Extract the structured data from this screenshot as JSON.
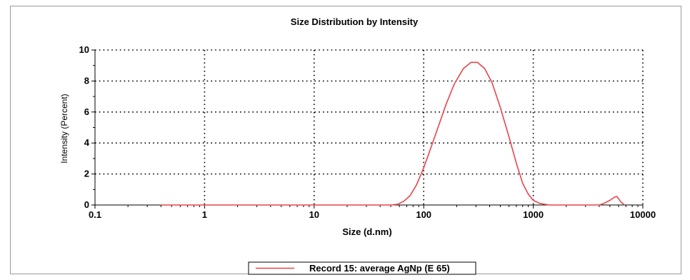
{
  "chart_data": {
    "type": "line",
    "title": "Size Distribution by Intensity",
    "xlabel": "Size (d.nm)",
    "ylabel": "Intensity (Percent)",
    "x_scale": "log",
    "xlim": [
      0.1,
      10000
    ],
    "ylim": [
      0,
      10
    ],
    "x_ticks": [
      0.1,
      1,
      10,
      100,
      1000,
      10000
    ],
    "x_tick_labels": [
      "0.1",
      "1",
      "10",
      "100",
      "1000",
      "10000"
    ],
    "y_ticks": [
      0,
      2,
      4,
      6,
      8,
      10
    ],
    "y_tick_labels": [
      "0",
      "2",
      "4",
      "6",
      "8",
      "10"
    ],
    "grid": "dotted",
    "legend_position": "bottom-center",
    "series": [
      {
        "name": "Record 15: average AgNp (E 65)",
        "color": "#e8454b",
        "points": [
          [
            0.4,
            0
          ],
          [
            1,
            0
          ],
          [
            10,
            0
          ],
          [
            50,
            0
          ],
          [
            58,
            0.05
          ],
          [
            66,
            0.25
          ],
          [
            75,
            0.6
          ],
          [
            86,
            1.3
          ],
          [
            100,
            2.4
          ],
          [
            115,
            3.6
          ],
          [
            135,
            5.0
          ],
          [
            160,
            6.5
          ],
          [
            190,
            7.8
          ],
          [
            230,
            8.8
          ],
          [
            270,
            9.2
          ],
          [
            310,
            9.2
          ],
          [
            360,
            8.8
          ],
          [
            420,
            7.9
          ],
          [
            500,
            6.3
          ],
          [
            600,
            4.4
          ],
          [
            700,
            2.7
          ],
          [
            800,
            1.4
          ],
          [
            900,
            0.7
          ],
          [
            1000,
            0.3
          ],
          [
            1150,
            0.1
          ],
          [
            1400,
            0
          ],
          [
            2000,
            0
          ],
          [
            3000,
            0
          ],
          [
            4000,
            0
          ],
          [
            4400,
            0.1
          ],
          [
            5000,
            0.3
          ],
          [
            5500,
            0.5
          ],
          [
            5800,
            0.55
          ],
          [
            6300,
            0.2
          ],
          [
            6800,
            0
          ]
        ]
      }
    ]
  }
}
